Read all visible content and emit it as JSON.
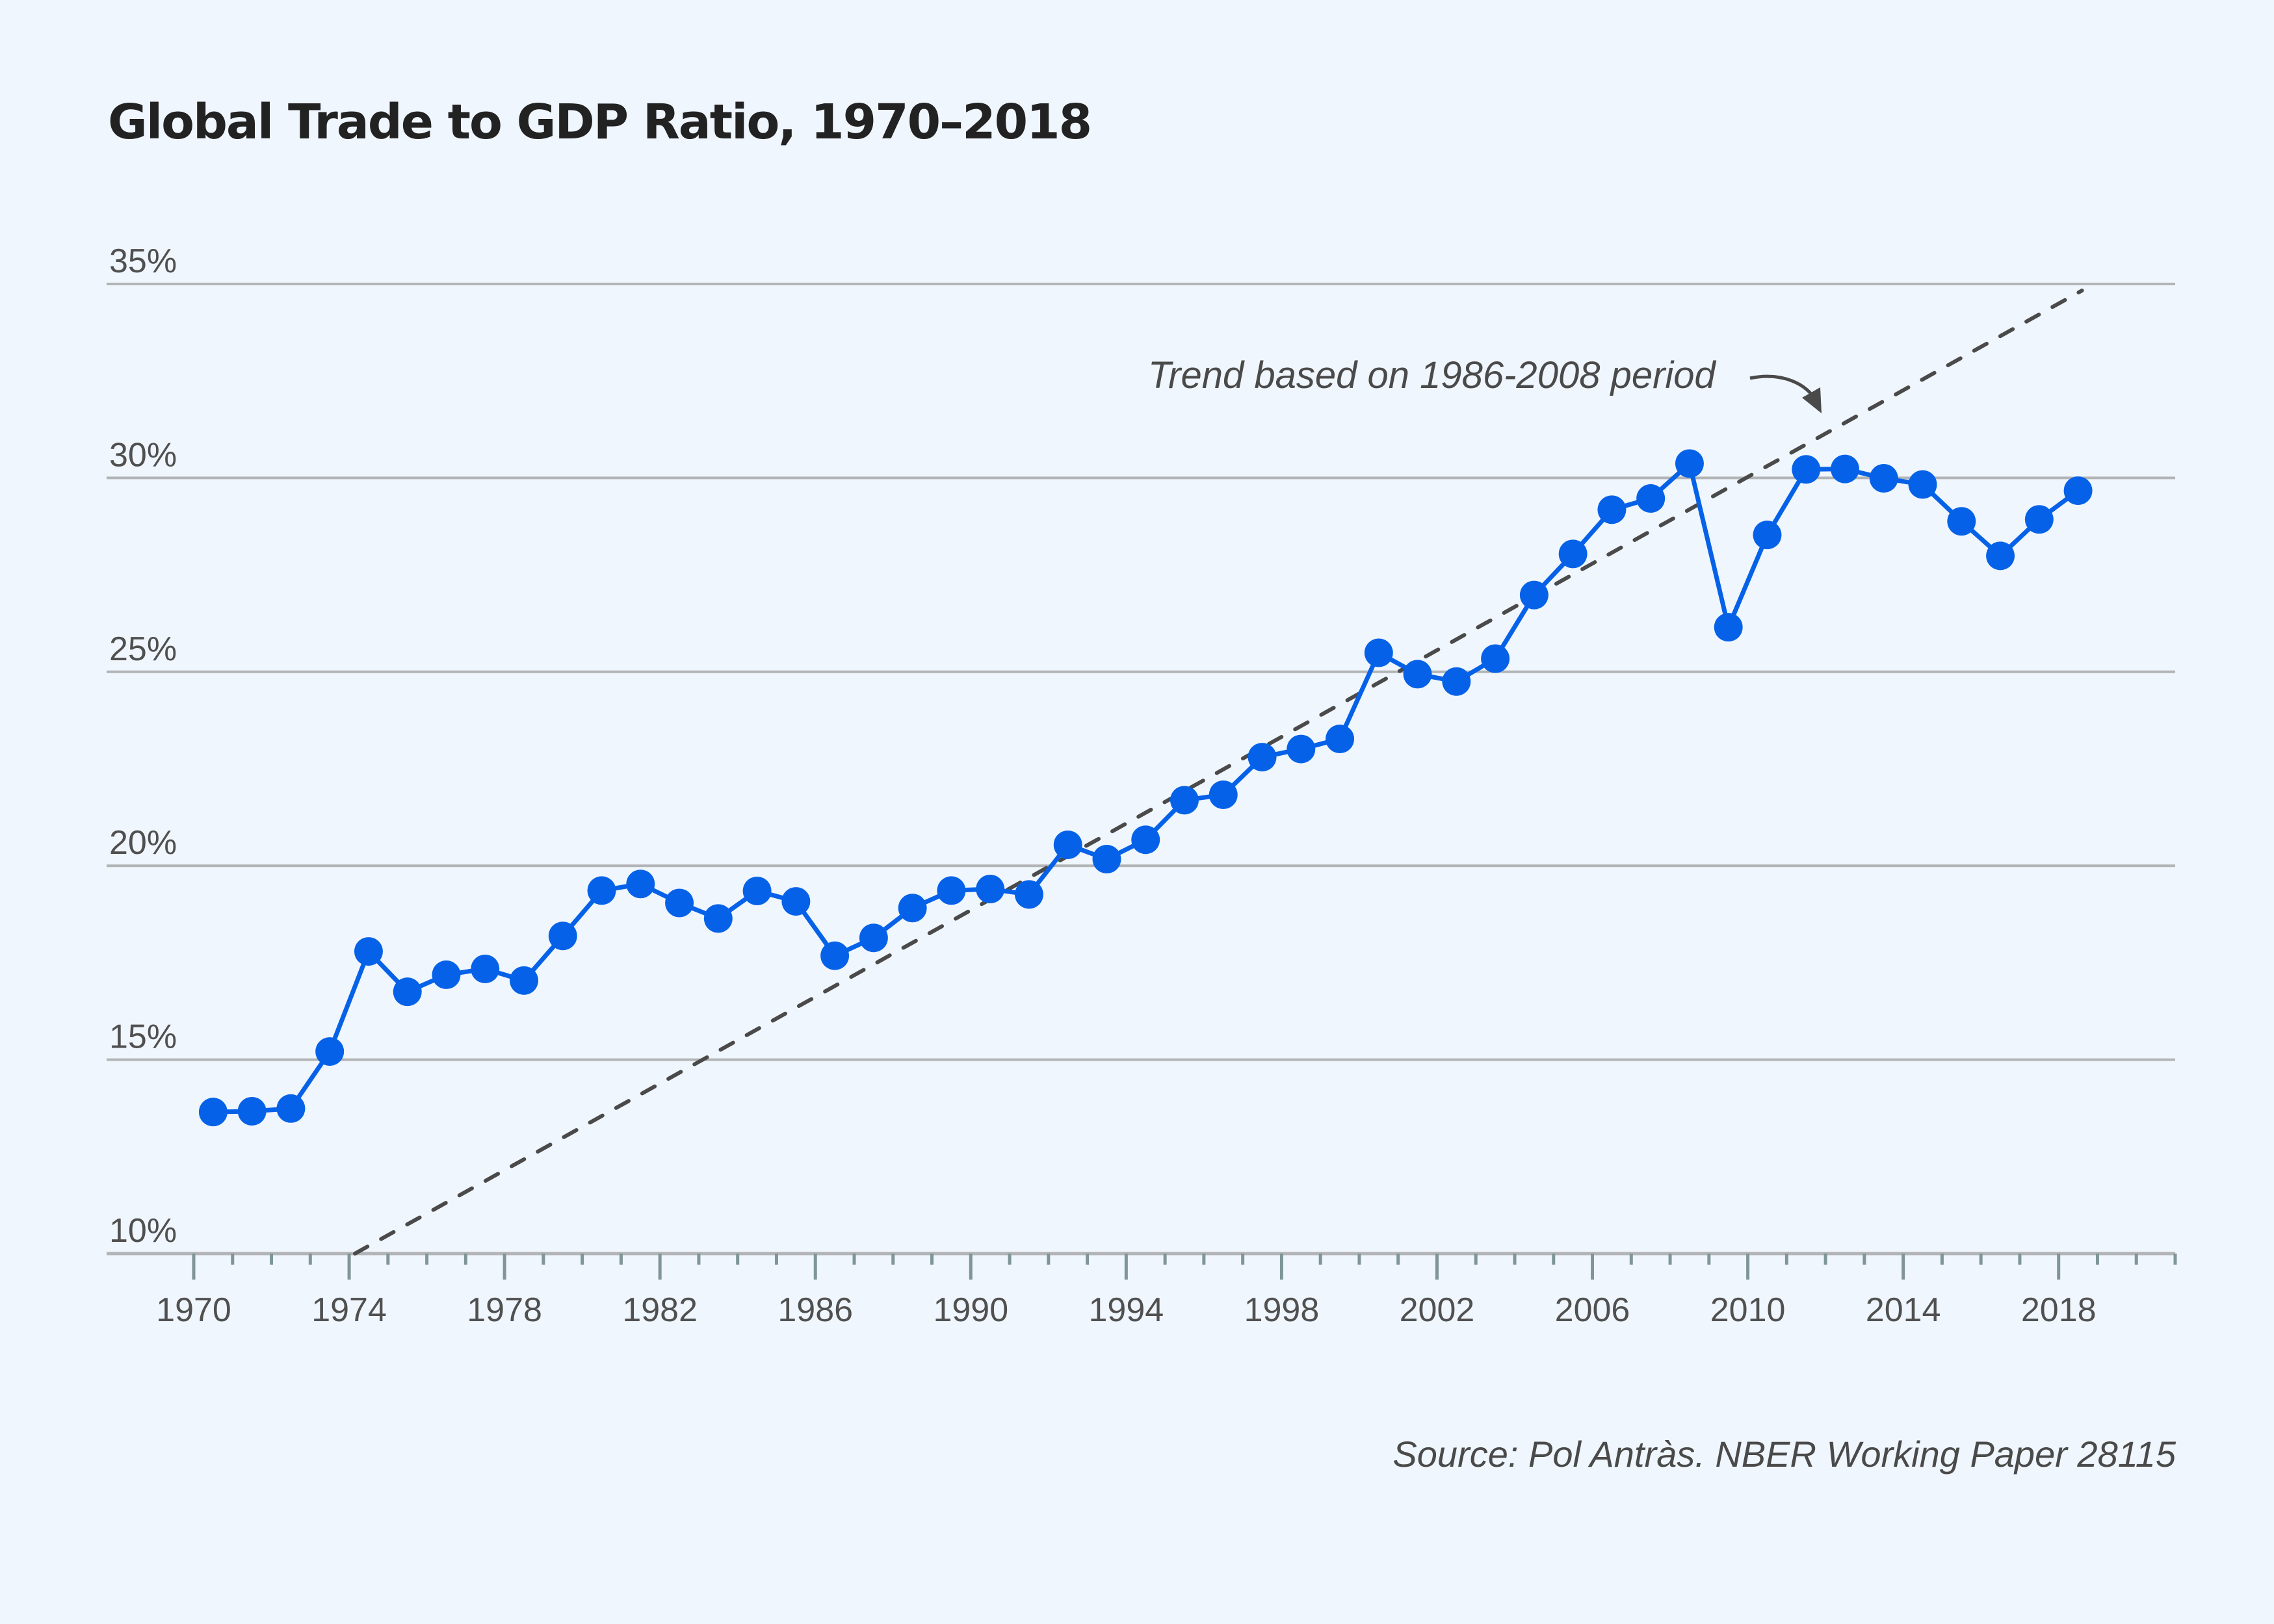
{
  "chart_data": {
    "type": "line",
    "title": "Global Trade to GDP Ratio, 1970–2018",
    "xlabel": "",
    "ylabel": "",
    "xlim": [
      1970,
      2021
    ],
    "ylim": [
      10,
      35
    ],
    "grid": true,
    "y_ticks": [
      {
        "value": 35,
        "label": "35%"
      },
      {
        "value": 30,
        "label": "30%"
      },
      {
        "value": 25,
        "label": "25%"
      },
      {
        "value": 20,
        "label": "20%"
      },
      {
        "value": 15,
        "label": "15%"
      },
      {
        "value": 10,
        "label": "10%"
      }
    ],
    "x_major_ticks": [
      {
        "value": 1970,
        "label": "1970"
      },
      {
        "value": 1974,
        "label": "1974"
      },
      {
        "value": 1978,
        "label": "1978"
      },
      {
        "value": 1982,
        "label": "1982"
      },
      {
        "value": 1986,
        "label": "1986"
      },
      {
        "value": 1990,
        "label": "1990"
      },
      {
        "value": 1994,
        "label": "1994"
      },
      {
        "value": 1998,
        "label": "1998"
      },
      {
        "value": 2002,
        "label": "2002"
      },
      {
        "value": 2006,
        "label": "2006"
      },
      {
        "value": 2010,
        "label": "2010"
      },
      {
        "value": 2014,
        "label": "2014"
      },
      {
        "value": 2018,
        "label": "2018"
      }
    ],
    "x_minor_tick_step": 1,
    "series": [
      {
        "name": "Global trade to GDP ratio (%)",
        "color": "#0562E8",
        "x": [
          1970,
          1971,
          1972,
          1973,
          1974,
          1975,
          1976,
          1977,
          1978,
          1979,
          1980,
          1981,
          1982,
          1983,
          1984,
          1985,
          1986,
          1987,
          1988,
          1989,
          1990,
          1991,
          1992,
          1993,
          1994,
          1995,
          1996,
          1997,
          1998,
          1999,
          2000,
          2001,
          2002,
          2003,
          2004,
          2005,
          2006,
          2007,
          2008,
          2009,
          2010,
          2011,
          2012,
          2013,
          2014,
          2015,
          2016,
          2017,
          2018
        ],
        "values": [
          13.65,
          13.67,
          13.74,
          15.21,
          17.79,
          16.75,
          17.19,
          17.34,
          17.04,
          18.19,
          19.36,
          19.53,
          19.04,
          18.64,
          19.35,
          19.08,
          17.68,
          18.14,
          18.91,
          19.36,
          19.4,
          19.26,
          20.54,
          20.17,
          20.67,
          21.69,
          21.83,
          22.8,
          23.01,
          23.27,
          25.49,
          24.94,
          24.75,
          25.34,
          26.98,
          28.04,
          29.18,
          29.47,
          30.37,
          26.15,
          28.53,
          30.22,
          30.23,
          29.99,
          29.83,
          28.88,
          27.99,
          28.93,
          29.67
        ]
      }
    ],
    "trend_line": {
      "name": "Trend based on 1986-2008 period",
      "style": "dashed",
      "color": "#4A4A4A",
      "start": {
        "x": 1974.15,
        "y": 10.0
      },
      "end": {
        "x": 2018.6,
        "y": 34.83
      }
    },
    "annotations": [
      {
        "text": "Trend based on 1986-2008 period",
        "style": "italic",
        "points_to": "trend_line"
      }
    ],
    "source": "Source: Pol Antràs. NBER Working Paper 28115"
  }
}
